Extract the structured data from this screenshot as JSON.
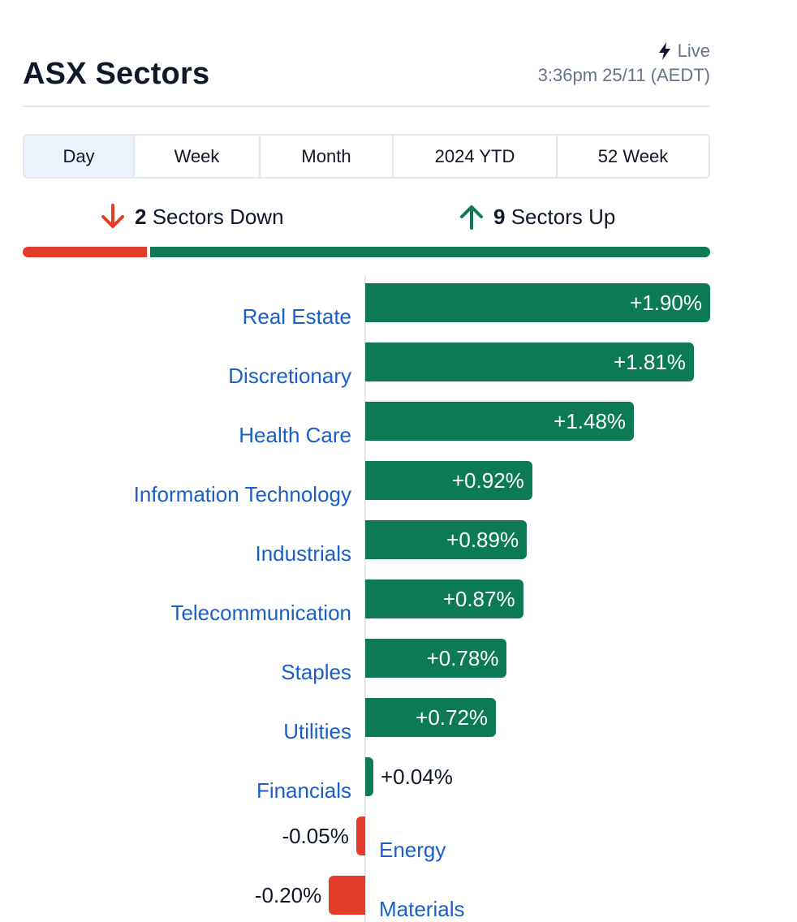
{
  "header": {
    "title": "ASX Sectors",
    "live_label": "Live",
    "timestamp": "3:36pm 25/11 (AEDT)"
  },
  "tabs": [
    {
      "label": "Day",
      "active": true
    },
    {
      "label": "Week",
      "active": false
    },
    {
      "label": "Month",
      "active": false
    },
    {
      "label": "2024 YTD",
      "active": false
    },
    {
      "label": "52 Week",
      "active": false
    }
  ],
  "summary": {
    "down_count": "2",
    "down_label": "Sectors Down",
    "up_count": "9",
    "up_label": "Sectors Up"
  },
  "colors": {
    "up": "#0d7a57",
    "down": "#e43c2b",
    "link": "#1a5fc8"
  },
  "chart_data": {
    "type": "bar",
    "orientation": "horizontal",
    "unit": "%",
    "xlim": [
      -0.25,
      1.9
    ],
    "categories": [
      "Real Estate",
      "Discretionary",
      "Health Care",
      "Information Technology",
      "Industrials",
      "Telecommunication",
      "Staples",
      "Utilities",
      "Financials",
      "Energy",
      "Materials"
    ],
    "values": [
      1.9,
      1.81,
      1.48,
      0.92,
      0.89,
      0.87,
      0.78,
      0.72,
      0.04,
      -0.05,
      -0.2
    ],
    "labels": [
      "+1.90%",
      "+1.81%",
      "+1.48%",
      "+0.92%",
      "+0.89%",
      "+0.87%",
      "+0.78%",
      "+0.72%",
      "+0.04%",
      "-0.05%",
      "-0.20%"
    ]
  }
}
